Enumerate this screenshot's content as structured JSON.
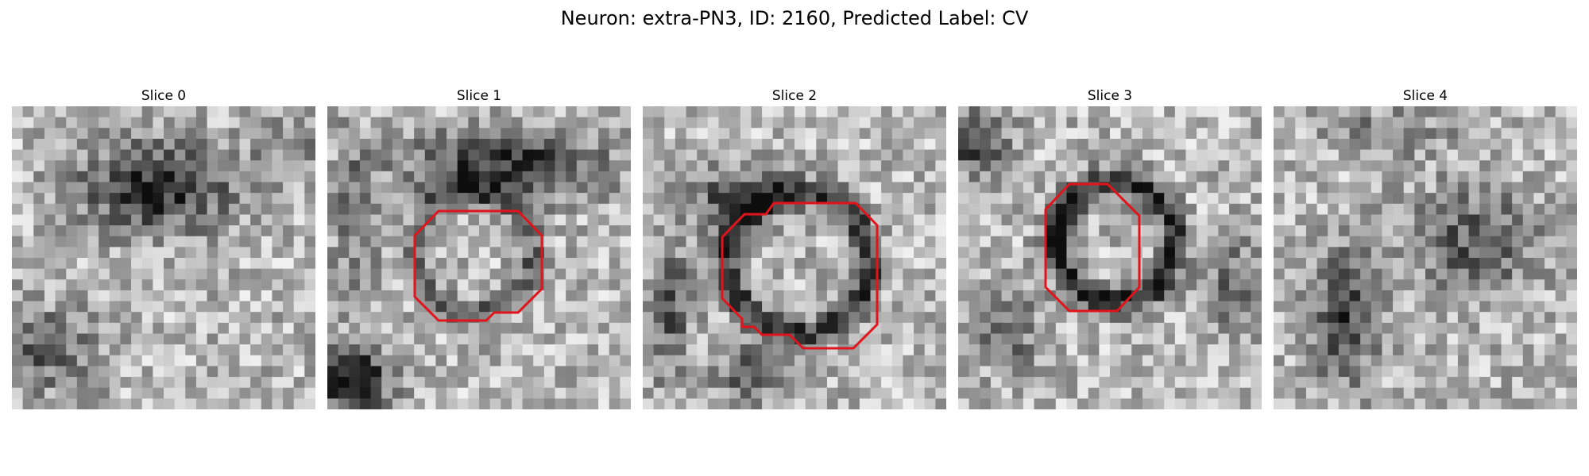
{
  "figure": {
    "title": "Neuron: extra-PN3, ID: 2160, Predicted Label: CV"
  },
  "overlay_color": "#e0141a",
  "grid_resolution": 28,
  "panels": [
    {
      "title": "Slice 0",
      "has_contour": false
    },
    {
      "title": "Slice 1",
      "has_contour": true
    },
    {
      "title": "Slice 2",
      "has_contour": true
    },
    {
      "title": "Slice 3",
      "has_contour": true
    },
    {
      "title": "Slice 4",
      "has_contour": false
    }
  ]
}
